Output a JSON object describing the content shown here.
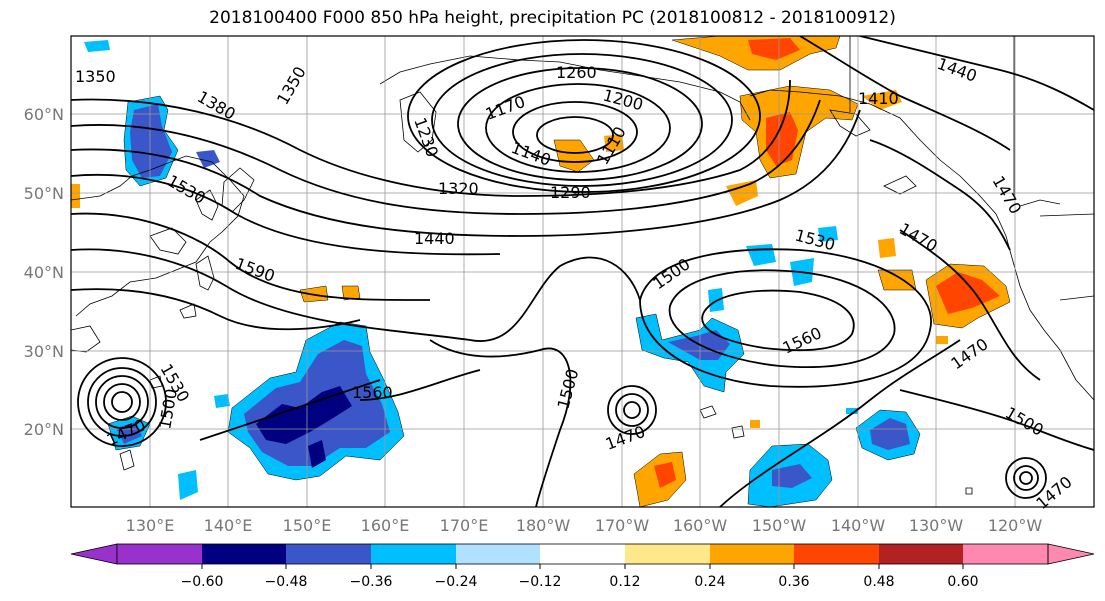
{
  "title": "2018100400 F000 850 hPa height, precipitation PC (2018100812 - 2018100912)",
  "lat_labels": [
    "60°N",
    "50°N",
    "40°N",
    "30°N",
    "20°N"
  ],
  "lon_labels": [
    "130°E",
    "140°E",
    "150°E",
    "160°E",
    "170°E",
    "180°W",
    "170°W",
    "160°W",
    "150°W",
    "140°W",
    "130°W",
    "120°W"
  ],
  "contour_labels": [
    "1350",
    "1350",
    "1380",
    "1260",
    "1230",
    "1170",
    "1200",
    "1140",
    "1110",
    "1320",
    "1290",
    "1410",
    "1440",
    "1530",
    "1440",
    "1590",
    "1470",
    "1470",
    "1530",
    "1500",
    "1560",
    "1530",
    "1500",
    "1560",
    "1470",
    "1500",
    "1470",
    "1470",
    "1500",
    "1470"
  ],
  "colorbar": {
    "ticks": [
      "−0.60",
      "−0.48",
      "−0.36",
      "−0.24",
      "−0.12",
      "0.12",
      "0.24",
      "0.36",
      "0.48",
      "0.60"
    ],
    "colors": [
      "#9932cc",
      "#000080",
      "#3a56c8",
      "#00bfff",
      "#b0e2ff",
      "#ffffff",
      "#ffe88a",
      "#ffa500",
      "#ff4500",
      "#b22222",
      "#ff88b0"
    ]
  }
}
